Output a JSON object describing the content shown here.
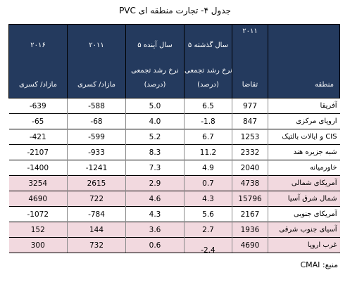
{
  "title": "جدول ۴- تجارت منطقه ای PVC",
  "headers": {
    "col_2016": {
      "year": "۲۰۱۶",
      "bottom": "مازاد/ کسری"
    },
    "col_2011b": {
      "year": "۲۰۱۱",
      "bottom": "مازاد/ کسری"
    },
    "col_future": {
      "top": "۵ سال آینده",
      "mid": "نرخ رشد تجمعی",
      "bottom": "(درصد)"
    },
    "col_past": {
      "top": "۵ سال گذشته",
      "mid": "نرخ رشد تجمعی",
      "bottom": "(درصد)"
    },
    "col_2011a": {
      "year": "۲۰۱۱",
      "bottom": "تقاضا"
    },
    "col_region": {
      "bottom": "منطقه"
    }
  },
  "rows": [
    {
      "region": "آفریقا",
      "demand": "977",
      "past": "6.5",
      "future": "5.0",
      "bal2011": "-588",
      "bal2016": "-639",
      "pink": false
    },
    {
      "region": "اروپای مرکزی",
      "demand": "847",
      "past": "-1.8",
      "future": "4.0",
      "bal2011": "-68",
      "bal2016": "-65",
      "pink": false
    },
    {
      "region": "CIS و ایالات بالتیک",
      "demand": "1253",
      "past": "6.7",
      "future": "5.2",
      "bal2011": "-599",
      "bal2016": "-421",
      "pink": false
    },
    {
      "region": "شبه جزیره هند",
      "demand": "2332",
      "past": "11.2",
      "future": "8.3",
      "bal2011": "-933",
      "bal2016": "-2107",
      "pink": false
    },
    {
      "region": "خاورمیانه",
      "demand": "2040",
      "past": "4.9",
      "future": "7.3",
      "bal2011": "-1241",
      "bal2016": "-1400",
      "pink": false
    },
    {
      "region": "آمریکای شمالی",
      "demand": "4738",
      "past": "0.7",
      "future": "2.9",
      "bal2011": "2615",
      "bal2016": "3254",
      "pink": true
    },
    {
      "region": "شمال شرق آسیا",
      "demand": "15796",
      "past": "4.3",
      "future": "4.6",
      "bal2011": "722",
      "bal2016": "4690",
      "pink": true
    },
    {
      "region": "آمریکای جنوبی",
      "demand": "2167",
      "past": "5.6",
      "future": "4.3",
      "bal2011": "-784",
      "bal2016": "-1072",
      "pink": false
    },
    {
      "region": "آسیای جنوب شرقی",
      "demand": "1936",
      "past": "2.7",
      "future": "3.6",
      "bal2011": "144",
      "bal2016": "152",
      "pink": true
    },
    {
      "region": "غرب اروپا",
      "demand": "4690",
      "past": "-2.4",
      "future": "0.6",
      "bal2011": "732",
      "bal2016": "300",
      "pink": true
    }
  ],
  "source": "منبع: CMAI"
}
